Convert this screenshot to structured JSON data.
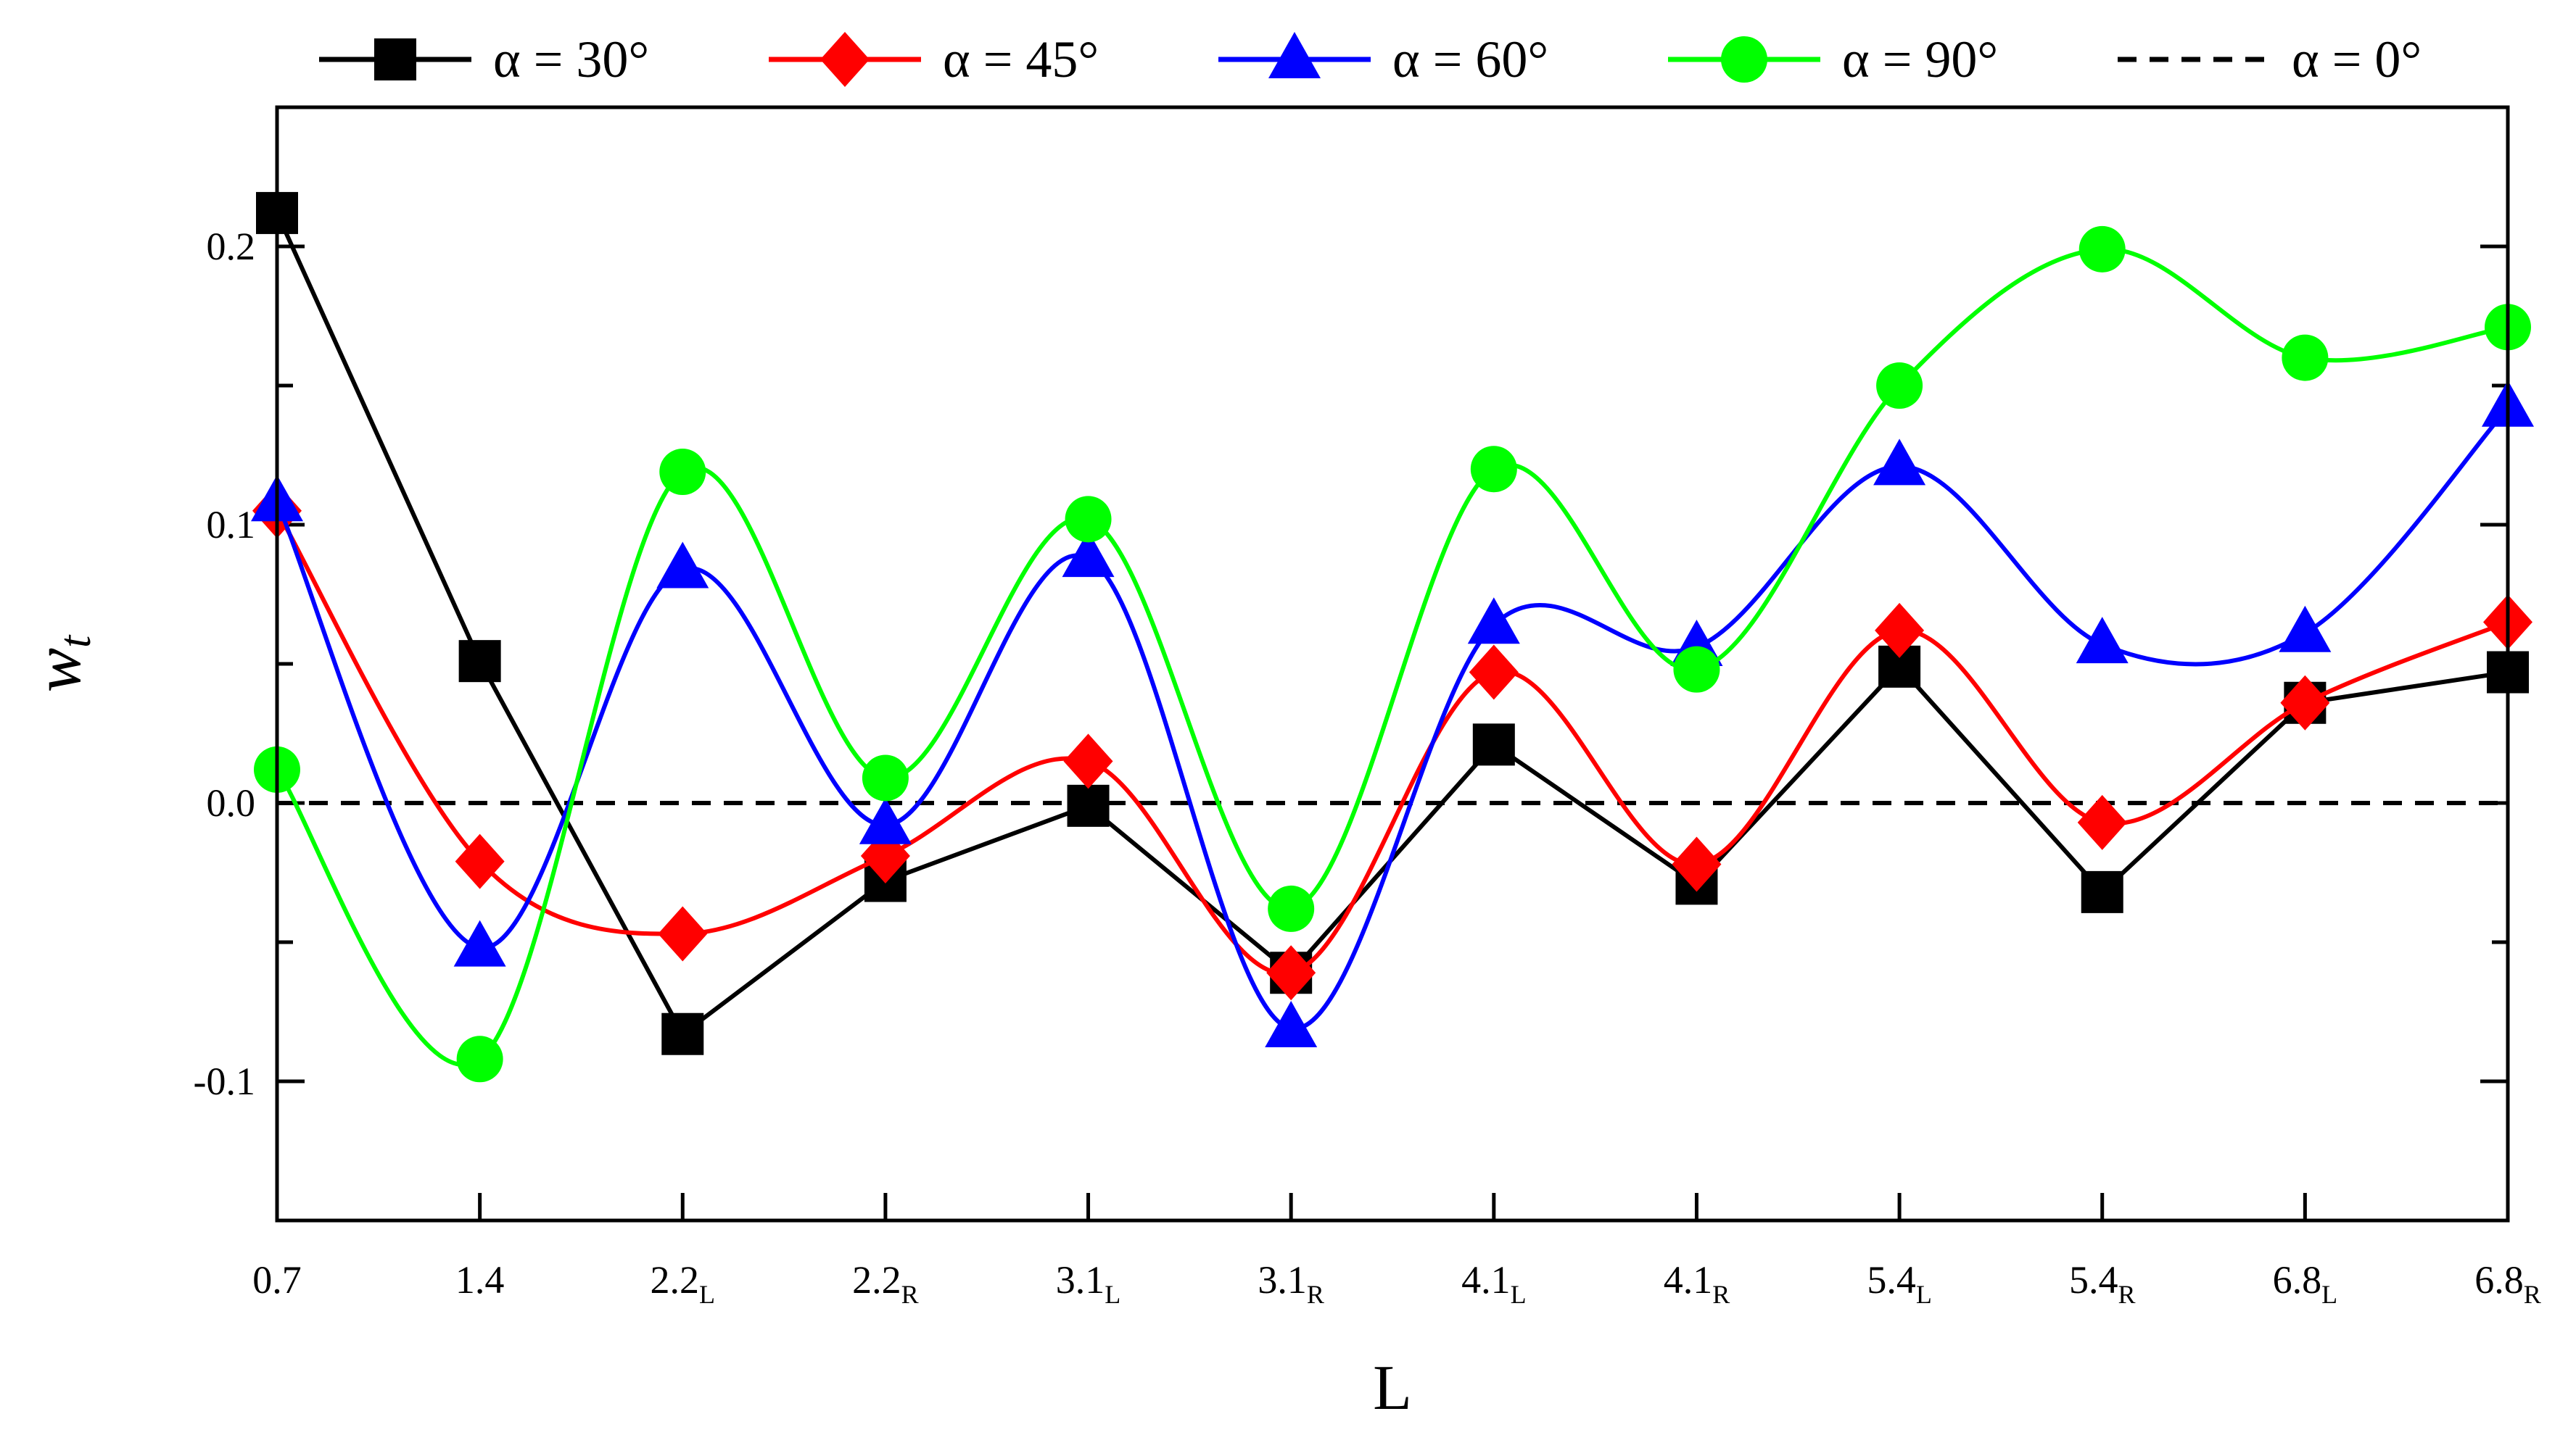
{
  "chart_data": {
    "type": "line",
    "title": "",
    "xlabel": "L",
    "ylabel": "w",
    "ylabel_sub": "t",
    "categories": [
      {
        "main": "0.7",
        "sub": ""
      },
      {
        "main": "1.4",
        "sub": ""
      },
      {
        "main": "2.2",
        "sub": "L"
      },
      {
        "main": "2.2",
        "sub": "R"
      },
      {
        "main": "3.1",
        "sub": "L"
      },
      {
        "main": "3.1",
        "sub": "R"
      },
      {
        "main": "4.1",
        "sub": "L"
      },
      {
        "main": "4.1",
        "sub": "R"
      },
      {
        "main": "5.4",
        "sub": "L"
      },
      {
        "main": "5.4",
        "sub": "R"
      },
      {
        "main": "6.8",
        "sub": "L"
      },
      {
        "main": "6.8",
        "sub": "R"
      }
    ],
    "ylim": [
      -0.15,
      0.25
    ],
    "yticks": [
      {
        "value": -0.1,
        "label": "-0.1"
      },
      {
        "value": 0.0,
        "label": "0.0"
      },
      {
        "value": 0.1,
        "label": "0.1"
      },
      {
        "value": 0.2,
        "label": "0.2"
      }
    ],
    "yminor": [
      -0.05,
      0.05,
      0.15
    ],
    "series": [
      {
        "name": "α = 30°",
        "color": "#000000",
        "marker": "square",
        "smooth": false,
        "values": [
          0.212,
          0.051,
          -0.083,
          -0.028,
          -0.001,
          -0.061,
          0.021,
          -0.029,
          0.049,
          -0.032,
          0.036,
          0.047
        ]
      },
      {
        "name": "α = 45°",
        "color": "#ff0000",
        "marker": "diamond",
        "smooth": true,
        "values": [
          0.105,
          -0.021,
          -0.047,
          -0.019,
          0.015,
          -0.061,
          0.047,
          -0.022,
          0.062,
          -0.007,
          0.036,
          0.065
        ]
      },
      {
        "name": "α = 60°",
        "color": "#0000ff",
        "marker": "triangle",
        "smooth": true,
        "values": [
          0.108,
          -0.052,
          0.084,
          -0.008,
          0.088,
          -0.081,
          0.064,
          0.056,
          0.121,
          0.057,
          0.061,
          0.142
        ]
      },
      {
        "name": "α = 90°",
        "color": "#00ff00",
        "marker": "circle",
        "smooth": true,
        "values": [
          0.012,
          -0.092,
          0.119,
          0.009,
          0.102,
          -0.038,
          0.12,
          0.048,
          0.15,
          0.199,
          0.16,
          0.171
        ]
      }
    ],
    "reference_line": {
      "name": "α = 0°",
      "value": 0.0,
      "color": "#000000",
      "style": "dashed"
    },
    "legend_position": "top"
  }
}
